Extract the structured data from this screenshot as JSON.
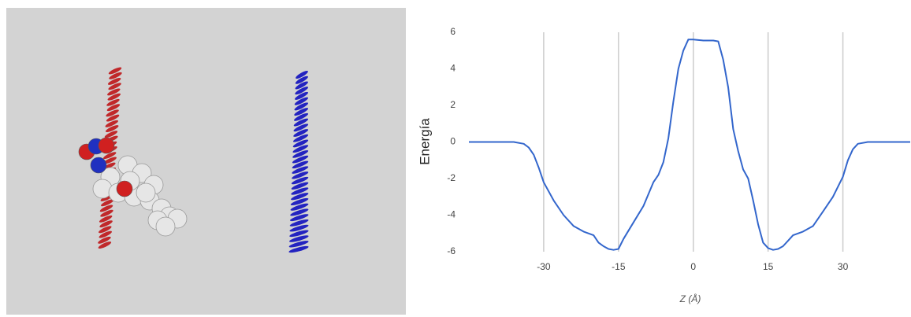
{
  "chart_data": {
    "type": "line",
    "x_label": "Z (Å)",
    "y_label": "Energía",
    "x": [
      -45,
      -36,
      -34,
      -33,
      -32,
      -31,
      -30,
      -28,
      -26,
      -24,
      -22,
      -20,
      -19,
      -18,
      -17,
      -16,
      -15,
      -14,
      -12,
      -10,
      -8,
      -7,
      -6,
      -5,
      -4,
      -3,
      -2,
      -1,
      0,
      2,
      4,
      5,
      6,
      7,
      8,
      9,
      10,
      11,
      12,
      13,
      14,
      15,
      16,
      17,
      18,
      19,
      20,
      22,
      24,
      26,
      28,
      30,
      31,
      32,
      33,
      35,
      43.5
    ],
    "series": [
      {
        "color": "#3366cc",
        "values": [
          0,
          0,
          -0.1,
          -0.3,
          -0.7,
          -1.4,
          -2.2,
          -3.2,
          -4.0,
          -4.6,
          -4.9,
          -5.1,
          -5.5,
          -5.7,
          -5.85,
          -5.9,
          -5.85,
          -5.3,
          -4.4,
          -3.5,
          -2.2,
          -1.8,
          -1.1,
          0.2,
          2.2,
          4.0,
          5.0,
          5.6,
          5.6,
          5.55,
          5.55,
          5.5,
          4.5,
          3.0,
          0.7,
          -0.5,
          -1.5,
          -2.0,
          -3.2,
          -4.5,
          -5.5,
          -5.8,
          -5.9,
          -5.85,
          -5.7,
          -5.4,
          -5.1,
          -4.9,
          -4.6,
          -3.8,
          -3.0,
          -1.9,
          -1.0,
          -0.4,
          -0.1,
          0,
          0
        ]
      }
    ],
    "xlim": [
      -45,
      43.5
    ],
    "xticks": [
      -30,
      -15,
      0,
      15,
      30
    ],
    "ylim": [
      -6,
      6
    ],
    "yticks": [
      -6,
      -4,
      -2,
      0,
      2,
      4,
      6
    ],
    "grid": "x"
  }
}
